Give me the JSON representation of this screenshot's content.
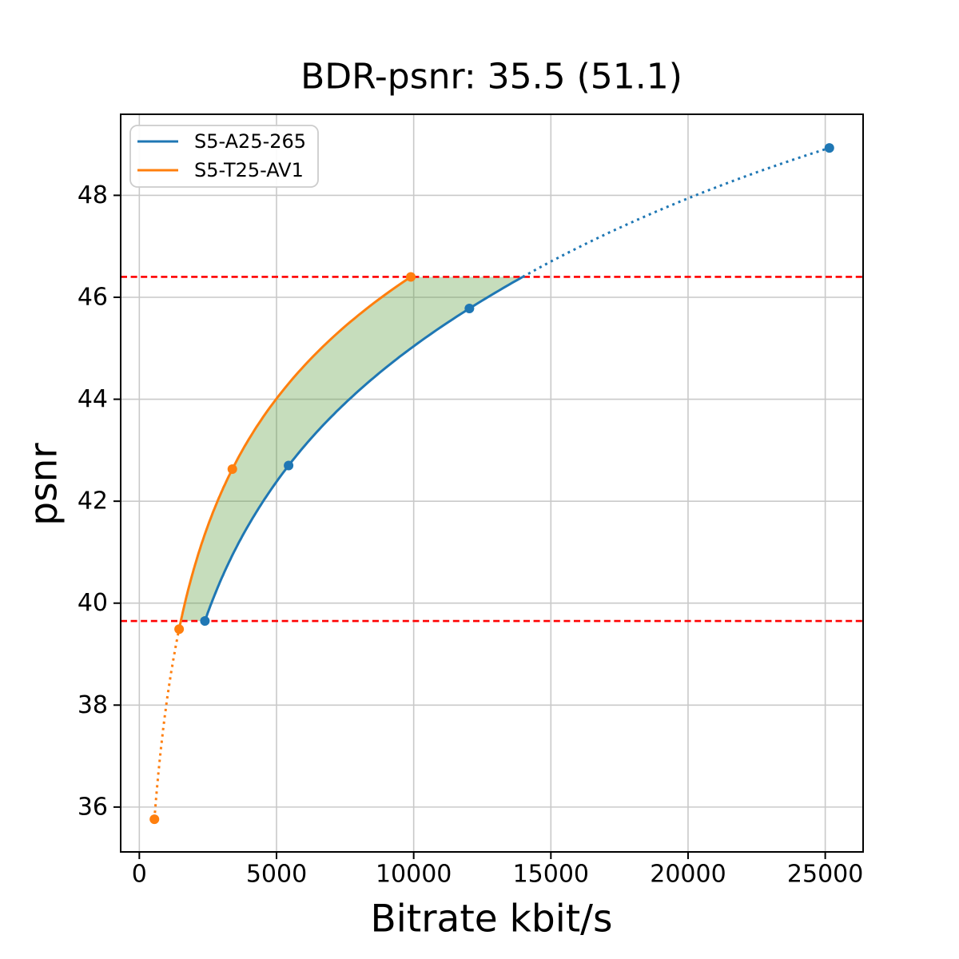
{
  "chart_data": {
    "type": "line",
    "title": "BDR-psnr: 35.5 (51.1)",
    "xlabel": "Bitrate kbit/s",
    "ylabel": "psnr",
    "xlim": [
      -680,
      26380
    ],
    "ylim": [
      35.12,
      49.59
    ],
    "xticks": [
      0,
      5000,
      10000,
      15000,
      20000,
      25000
    ],
    "yticks": [
      36,
      38,
      40,
      42,
      44,
      46,
      48
    ],
    "grid": true,
    "grid_color": "#c9c9c9",
    "legend_position": "upper-left",
    "series": [
      {
        "name": "S5-A25-265",
        "color": "#1f77b4",
        "points": [
          [
            2390,
            39.65
          ],
          [
            5440,
            42.7
          ],
          [
            12030,
            45.78
          ],
          [
            25150,
            48.93
          ]
        ],
        "solid_y_range": [
          39.65,
          46.4
        ],
        "interpolation": "pchip-log-x",
        "marker": "circle"
      },
      {
        "name": "S5-T25-AV1",
        "color": "#ff7f0e",
        "points": [
          [
            550,
            35.76
          ],
          [
            1450,
            39.49
          ],
          [
            3390,
            42.63
          ],
          [
            9895,
            46.4
          ]
        ],
        "solid_y_range": [
          39.49,
          46.4
        ],
        "interpolation": "pchip-log-x",
        "marker": "circle"
      }
    ],
    "ref_lines": {
      "color": "#ff0000",
      "style": "dashed",
      "values": [
        39.65,
        46.4
      ]
    },
    "shaded_band": {
      "fill": "rgba(92,158,63,0.35)",
      "y_range": [
        39.65,
        46.4
      ],
      "between": [
        "S5-T25-AV1",
        "S5-A25-265"
      ]
    }
  }
}
